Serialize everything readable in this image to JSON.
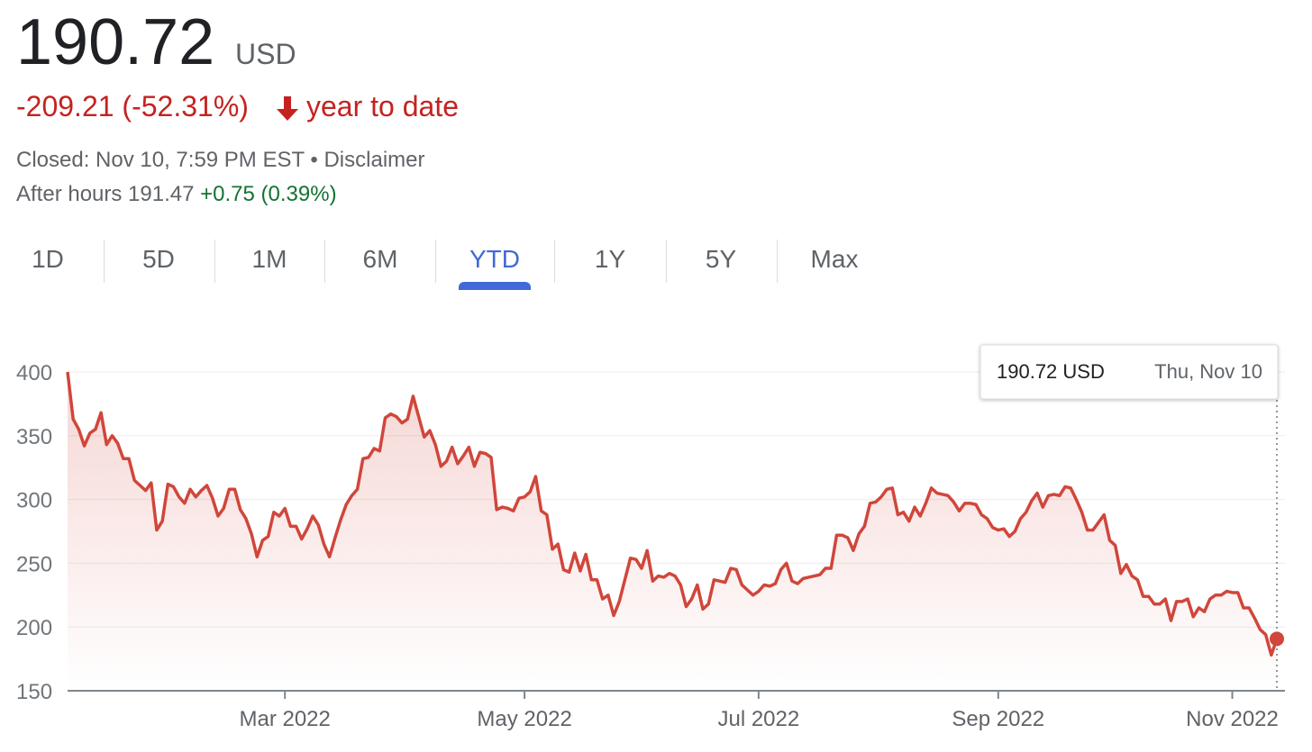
{
  "header": {
    "price": "190.72",
    "currency": "USD",
    "change": "-209.21 (-52.31%)",
    "period": "year to date",
    "closed": "Closed: Nov 10, 7:59 PM EST",
    "separator": "•",
    "disclaimer": "Disclaimer",
    "after_hours": "After hours 191.47",
    "after_hours_change": "+0.75 (0.39%)"
  },
  "tabs": [
    "1D",
    "5D",
    "1M",
    "6M",
    "YTD",
    "1Y",
    "5Y",
    "Max"
  ],
  "active_tab": 4,
  "chart_data": {
    "type": "line",
    "color": "#d0463b",
    "values": [
      400,
      363,
      355,
      342,
      352,
      355,
      368,
      343,
      350,
      344,
      332,
      332,
      315,
      311,
      307,
      313,
      276,
      283,
      312,
      310,
      302,
      297,
      308,
      302,
      307,
      311,
      301,
      287,
      293,
      308,
      308,
      292,
      285,
      273,
      255,
      268,
      271,
      290,
      287,
      293,
      279,
      279,
      269,
      277,
      287,
      280,
      265,
      255,
      270,
      284,
      296,
      303,
      308,
      332,
      333,
      340,
      338,
      364,
      367,
      365,
      360,
      363,
      381,
      365,
      349,
      354,
      343,
      326,
      330,
      341,
      328,
      334,
      341,
      326,
      337,
      336,
      333,
      292,
      294,
      293,
      291,
      301,
      302,
      306,
      318,
      291,
      288,
      261,
      265,
      245,
      243,
      258,
      244,
      257,
      237,
      237,
      222,
      225,
      209,
      220,
      237,
      254,
      253,
      246,
      260,
      236,
      240,
      239,
      242,
      240,
      233,
      216,
      222,
      233,
      214,
      218,
      237,
      236,
      235,
      246,
      245,
      233,
      229,
      225,
      228,
      233,
      232,
      234,
      245,
      250,
      236,
      234,
      238,
      239,
      240,
      241,
      246,
      246,
      272,
      272,
      270,
      260,
      273,
      279,
      297,
      298,
      302,
      308,
      309,
      288,
      290,
      283,
      294,
      287,
      297,
      309,
      305,
      304,
      303,
      298,
      291,
      297,
      297,
      296,
      288,
      285,
      278,
      276,
      277,
      271,
      275,
      285,
      290,
      299,
      305,
      294,
      303,
      304,
      303,
      310,
      309,
      300,
      290,
      276,
      276,
      282,
      288,
      268,
      264,
      242,
      249,
      240,
      237,
      224,
      224,
      218,
      218,
      222,
      205,
      220,
      220,
      222,
      208,
      215,
      212,
      222,
      225,
      225,
      228,
      227,
      227,
      215,
      215,
      207,
      198,
      194,
      178,
      190.72
    ],
    "xlim": [
      0,
      217
    ],
    "xticks": [
      {
        "value": 39,
        "label": "Mar 2022"
      },
      {
        "value": 82,
        "label": "May 2022"
      },
      {
        "value": 124,
        "label": "Jul 2022"
      },
      {
        "value": 167,
        "label": "Sep 2022"
      },
      {
        "value": 209,
        "label": "Nov 2022"
      }
    ],
    "ylim": [
      150,
      400
    ],
    "yticks": [
      150,
      200,
      250,
      300,
      350,
      400
    ],
    "grid": true,
    "tooltip": {
      "value": "190.72 USD",
      "date": "Thu, Nov 10"
    }
  }
}
